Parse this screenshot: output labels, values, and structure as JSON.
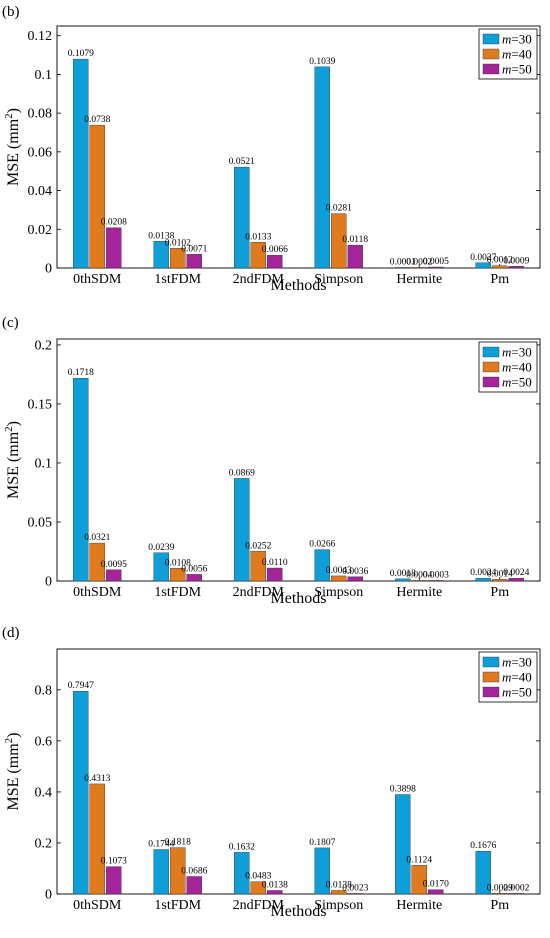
{
  "colors": {
    "m30": "#0E9FD8",
    "m40": "#E07A1F",
    "m50": "#A6249A"
  },
  "chart_data": [
    {
      "type": "bar",
      "panel_label": "(b)",
      "categories": [
        "0thSDM",
        "1stFDM",
        "2ndFDM",
        "Simpson",
        "Hermite",
        "Pm"
      ],
      "xlabel": "Methods",
      "ylabel": "MSE (mm²)",
      "ylim": [
        0,
        0.125
      ],
      "yticks": [
        0,
        0.02,
        0.04,
        0.06,
        0.08,
        0.1,
        0.12
      ],
      "ytick_labels": [
        "0",
        "0.02",
        "0.04",
        "0.06",
        "0.08",
        "0.1",
        "0.12"
      ],
      "legend_position": "top-right",
      "series": [
        {
          "name": "m=30",
          "values": [
            0.1079,
            0.0138,
            0.0521,
            0.1039,
            0.0001,
            0.0027
          ],
          "labels": [
            "0.1079",
            "0.0138",
            "0.0521",
            "0.1039",
            "0.0001",
            "0.0027"
          ]
        },
        {
          "name": "m=40",
          "values": [
            0.0738,
            0.0102,
            0.0133,
            0.0281,
            0.0002,
            0.0012
          ],
          "labels": [
            "0.0738",
            "0.0102",
            "0.0133",
            "0.0281",
            "0.0002",
            "0.0012"
          ]
        },
        {
          "name": "m=50",
          "values": [
            0.0208,
            0.0071,
            0.0066,
            0.0118,
            0.0005,
            0.0009
          ],
          "labels": [
            "0.0208",
            "0.0071",
            "0.0066",
            "0.0118",
            "0.0005",
            "0.0009"
          ]
        }
      ]
    },
    {
      "type": "bar",
      "panel_label": "(c)",
      "categories": [
        "0thSDM",
        "1stFDM",
        "2ndFDM",
        "Simpson",
        "Hermite",
        "Pm"
      ],
      "xlabel": "Methods",
      "ylabel": "MSE (mm²)",
      "ylim": [
        0,
        0.205
      ],
      "yticks": [
        0,
        0.05,
        0.1,
        0.15,
        0.2
      ],
      "ytick_labels": [
        "0",
        "0.05",
        "0.1",
        "0.15",
        "0.2"
      ],
      "legend_position": "top-right",
      "series": [
        {
          "name": "m=30",
          "values": [
            0.1718,
            0.0239,
            0.0869,
            0.0266,
            0.0018,
            0.0024
          ],
          "labels": [
            "0.1718",
            "0.0239",
            "0.0869",
            "0.0266",
            "0.0018",
            "0.0024"
          ]
        },
        {
          "name": "m=40",
          "values": [
            0.0321,
            0.0108,
            0.0252,
            0.0043,
            0.0004,
            0.0014
          ],
          "labels": [
            "0.0321",
            "0.0108",
            "0.0252",
            "0.0043",
            "0.0004",
            "0.0014"
          ]
        },
        {
          "name": "m=50",
          "values": [
            0.0095,
            0.0056,
            0.011,
            0.0036,
            0.0003,
            0.0024
          ],
          "labels": [
            "0.0095",
            "0.0056",
            "0.0110",
            "0.0036",
            "0.0003",
            "0.0024"
          ]
        }
      ]
    },
    {
      "type": "bar",
      "panel_label": "(d)",
      "categories": [
        "0thSDM",
        "1stFDM",
        "2ndFDM",
        "Simpson",
        "Hermite",
        "Pm"
      ],
      "xlabel": "Methods",
      "ylabel": "MSE (mm²)",
      "ylim": [
        0,
        0.96
      ],
      "yticks": [
        0,
        0.2,
        0.4,
        0.6,
        0.8
      ],
      "ytick_labels": [
        "0",
        "0.2",
        "0.4",
        "0.6",
        "0.8"
      ],
      "legend_position": "top-right",
      "series": [
        {
          "name": "m=30",
          "values": [
            0.7947,
            0.1744,
            0.1632,
            0.1807,
            0.3898,
            0.1676
          ],
          "labels": [
            "0.7947",
            "0.1744",
            "0.1632",
            "0.1807",
            "0.3898",
            "0.1676"
          ]
        },
        {
          "name": "m=40",
          "values": [
            0.4313,
            0.1818,
            0.0483,
            0.0138,
            0.1124,
            0.0029
          ],
          "labels": [
            "0.4313",
            "0.1818",
            "0.0483",
            "0.0138",
            "0.1124",
            "0.0029"
          ]
        },
        {
          "name": "m=50",
          "values": [
            0.1073,
            0.0686,
            0.0138,
            0.0023,
            0.017,
            0.0002
          ],
          "labels": [
            "0.1073",
            "0.0686",
            "0.0138",
            "0.0023",
            "0.0170",
            "0.0002"
          ]
        }
      ]
    }
  ]
}
